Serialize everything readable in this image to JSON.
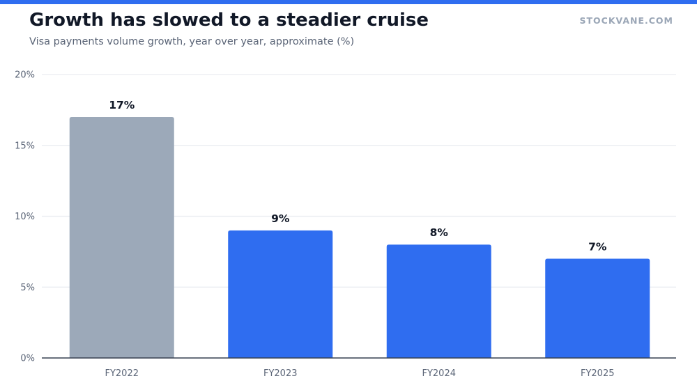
{
  "header": {
    "title": "Growth has slowed to a steadier cruise",
    "subtitle": "Visa payments volume growth, year over year, approximate (%)",
    "brand": "STOCKVANE.COM"
  },
  "colors": {
    "accent": "#2f6df0",
    "muted_bar": "#9ca9b9",
    "grid": "#e9ecf0",
    "axis": "#374151"
  },
  "chart_data": {
    "type": "bar",
    "title": "Growth has slowed to a steadier cruise",
    "subtitle": "Visa payments volume growth, year over year, approximate (%)",
    "categories": [
      "FY2022",
      "FY2023",
      "FY2024",
      "FY2025"
    ],
    "values": [
      17,
      9,
      8,
      7
    ],
    "data_labels": [
      "17%",
      "9%",
      "8%",
      "7%"
    ],
    "highlight": [
      false,
      true,
      true,
      true
    ],
    "ylim": [
      0,
      20
    ],
    "yticks": [
      0,
      5,
      10,
      15,
      20
    ],
    "ytick_labels": [
      "0%",
      "5%",
      "10%",
      "15%",
      "20%"
    ],
    "grid": true,
    "legend": "none"
  }
}
